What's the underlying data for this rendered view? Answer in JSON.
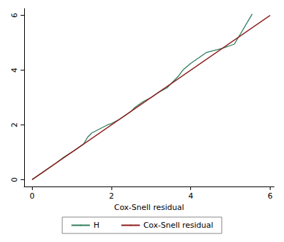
{
  "chart_data": {
    "type": "line",
    "x_label": "Cox-Snell residual",
    "xlim": [
      -0.2,
      6.1
    ],
    "xticks": [
      0,
      2,
      4,
      6
    ],
    "ylim": [
      -0.25,
      6.25
    ],
    "yticks": [
      0,
      2,
      4,
      6
    ],
    "grid": false,
    "legend": "bottom",
    "series": [
      {
        "name": "H",
        "color": "#2e7d5b",
        "x": [
          0,
          0.3,
          0.6,
          0.8,
          1.0,
          1.3,
          1.4,
          1.5,
          1.7,
          1.9,
          2.0,
          2.2,
          2.5,
          2.6,
          2.8,
          3.0,
          3.2,
          3.4,
          3.6,
          3.7,
          3.8,
          4.0,
          4.2,
          4.4,
          4.8,
          5.1,
          5.55
        ],
        "values": [
          0,
          0.3,
          0.6,
          0.82,
          1.0,
          1.3,
          1.55,
          1.7,
          1.85,
          2.0,
          2.05,
          2.2,
          2.5,
          2.65,
          2.85,
          3.0,
          3.2,
          3.35,
          3.65,
          3.8,
          4.0,
          4.25,
          4.45,
          4.65,
          4.8,
          4.95,
          6.05
        ]
      },
      {
        "name": "Cox-Snell residual",
        "color": "#8b1a1a",
        "x": [
          0,
          6
        ],
        "values": [
          0,
          6
        ]
      }
    ]
  }
}
